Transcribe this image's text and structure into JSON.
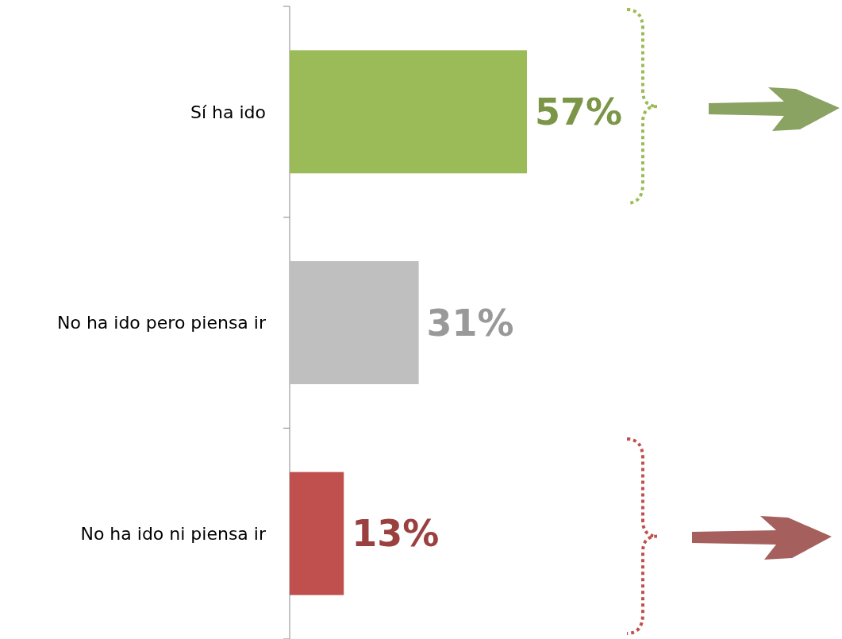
{
  "chart_data": {
    "type": "bar",
    "orientation": "horizontal",
    "categories": [
      "Sí ha ido",
      "No ha ido pero piensa ir",
      "No ha ido ni piensa ir"
    ],
    "values": [
      57,
      31,
      13
    ],
    "colors": [
      "#9bbb59",
      "#bfbfbf",
      "#c0504d"
    ],
    "value_labels": [
      "57%",
      "31%",
      "13%"
    ]
  }
}
